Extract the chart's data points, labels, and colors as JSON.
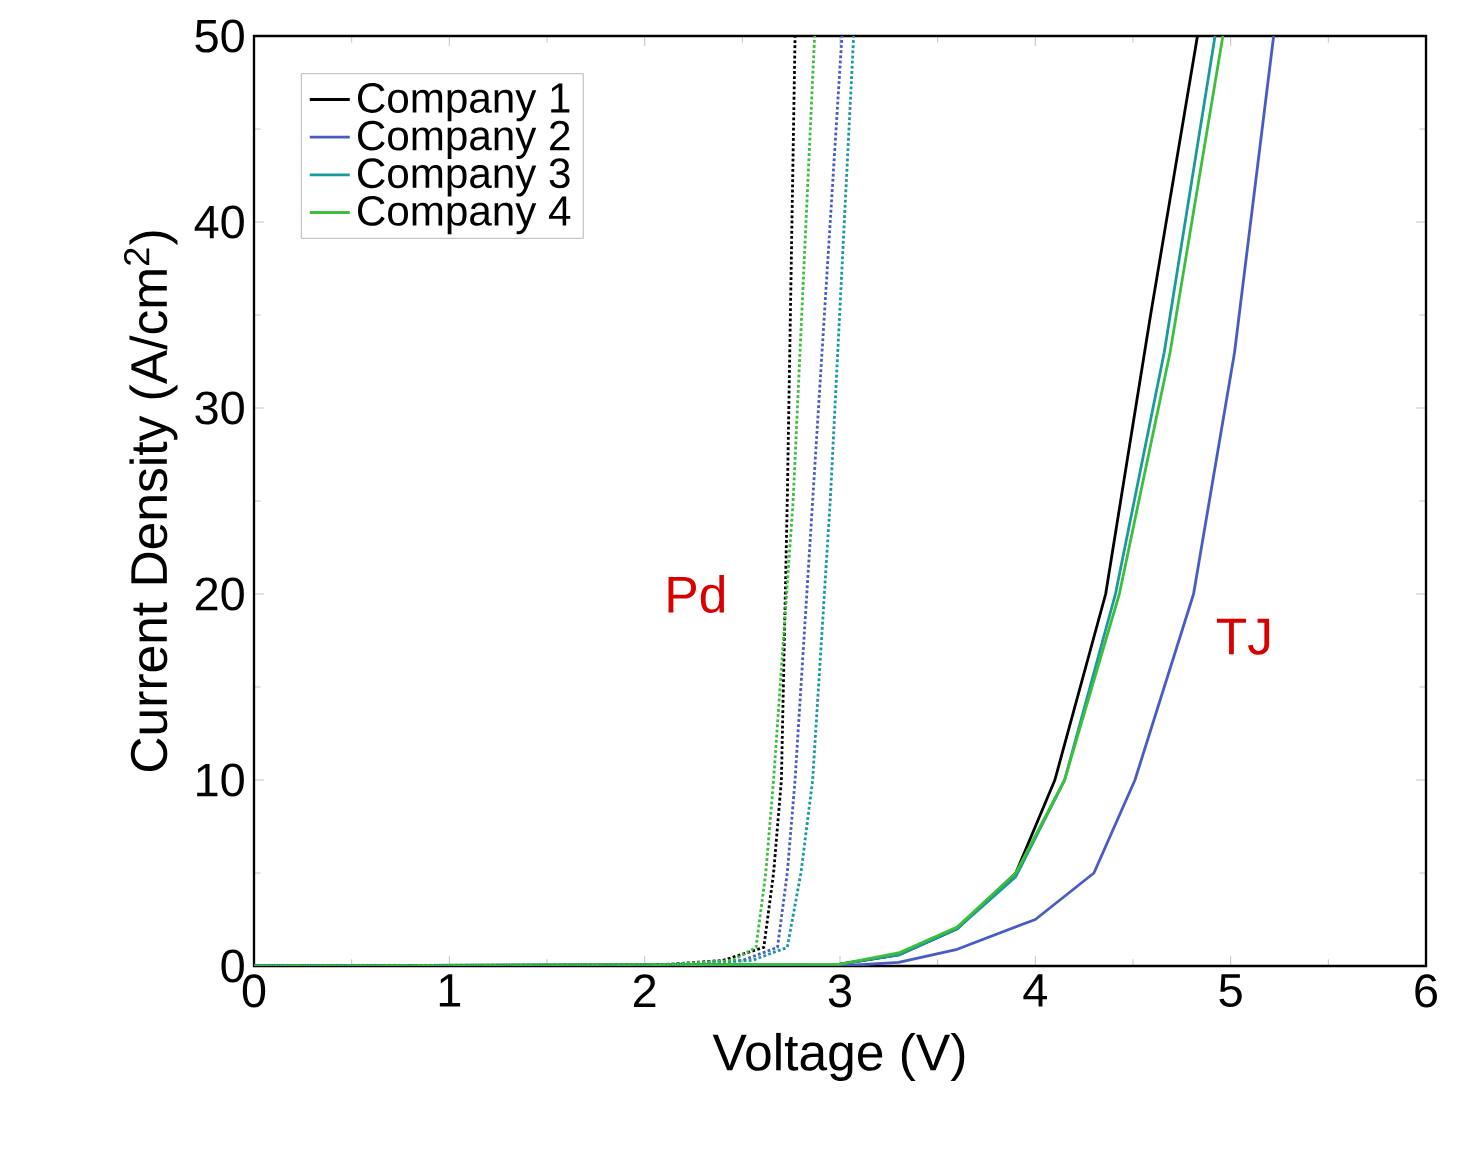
{
  "chart_data": {
    "type": "line",
    "xlabel": "Voltage (V)",
    "ylabel": "Current Density (A/cm$^{2}$)",
    "xlim": [
      0,
      6
    ],
    "ylim": [
      0,
      50
    ],
    "xticks": [
      0,
      1,
      2,
      3,
      4,
      5,
      6
    ],
    "yticks": [
      0,
      10,
      20,
      30,
      40,
      50
    ],
    "legend": "top left",
    "grid": false,
    "marker": "none",
    "series": [
      {
        "name": "Company 1",
        "color": "#000000",
        "line_style": "solid",
        "x": [
          0,
          3.0,
          3.3,
          3.6,
          3.9,
          4.1,
          4.36,
          4.59,
          4.83
        ],
        "values": [
          0,
          0.1,
          0.6,
          2,
          5,
          10,
          20,
          35,
          50
        ]
      },
      {
        "name": "Company 2",
        "color": "#4a5bc4",
        "line_style": "solid",
        "x": [
          0,
          3.0,
          3.3,
          3.6,
          4.0,
          4.3,
          4.51,
          4.81,
          5.02,
          5.22
        ],
        "values": [
          0,
          0,
          0.2,
          0.9,
          2.5,
          5,
          10,
          20,
          33,
          50
        ]
      },
      {
        "name": "Company 3",
        "color": "#1a9a9a",
        "line_style": "solid",
        "x": [
          0,
          3.0,
          3.3,
          3.6,
          3.9,
          4.15,
          4.41,
          4.66,
          4.92
        ],
        "values": [
          0,
          0.1,
          0.6,
          2,
          4.8,
          10,
          20,
          33,
          50
        ]
      },
      {
        "name": "Company 4",
        "color": "#3cbf3c",
        "line_style": "solid",
        "x": [
          0,
          3.0,
          3.3,
          3.6,
          3.9,
          4.15,
          4.43,
          4.69,
          4.96
        ],
        "values": [
          0,
          0.1,
          0.7,
          2.1,
          5,
          10,
          20,
          33,
          50
        ]
      },
      {
        "color": "#000000",
        "line_style": "dotted",
        "x": [
          0,
          2.0,
          2.4,
          2.61,
          2.66,
          2.7,
          2.73,
          2.77
        ],
        "values": [
          0,
          0,
          0.3,
          1,
          5,
          10,
          25,
          50
        ]
      },
      {
        "color": "#4a5bc4",
        "line_style": "dotted",
        "x": [
          0,
          2.0,
          2.5,
          2.68,
          2.73,
          2.77,
          2.86,
          3.01
        ],
        "values": [
          0,
          0,
          0.3,
          1,
          5,
          10,
          25,
          50
        ]
      },
      {
        "color": "#1a9a9a",
        "line_style": "dotted",
        "x": [
          0,
          2.0,
          2.55,
          2.73,
          2.8,
          2.86,
          2.95,
          3.07
        ],
        "values": [
          0,
          0,
          0.3,
          1,
          5,
          10,
          25,
          50
        ]
      },
      {
        "color": "#3cbf3c",
        "line_style": "dotted",
        "x": [
          0,
          2.0,
          2.45,
          2.57,
          2.62,
          2.66,
          2.76,
          2.87
        ],
        "values": [
          0,
          0,
          0.3,
          1,
          5,
          10,
          25,
          50
        ]
      }
    ],
    "annotations": [
      "Pd",
      "TJ"
    ]
  }
}
